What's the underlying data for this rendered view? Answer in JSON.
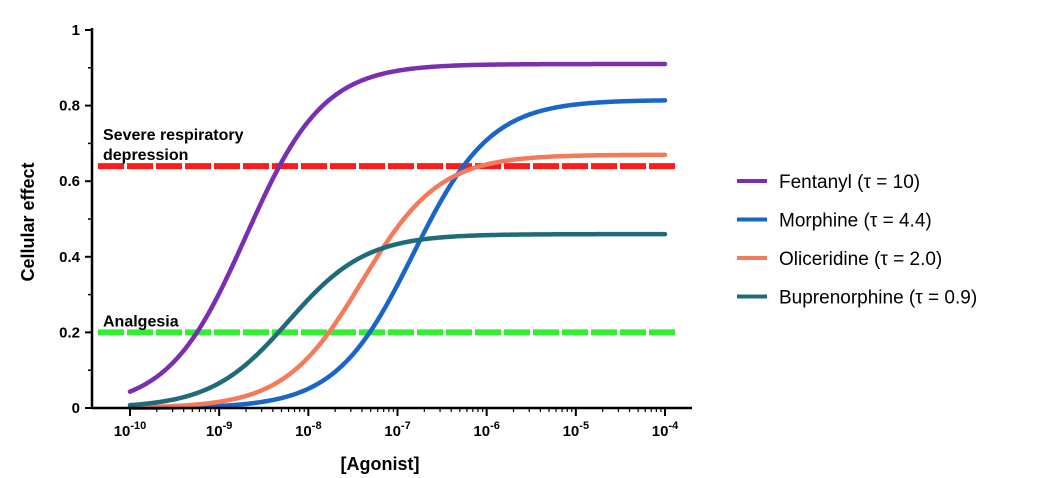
{
  "chart_data": {
    "type": "line",
    "title": "",
    "xlabel": "[Agonist]",
    "ylabel": "Cellular effect",
    "x_scale": "log",
    "xlim": [
      1e-10,
      0.0001
    ],
    "ylim": [
      0,
      1
    ],
    "grid": false,
    "legend_placement": "right",
    "x_ticks": [
      {
        "value": 1e-10,
        "base": "10",
        "exp": "-10"
      },
      {
        "value": 1e-09,
        "base": "10",
        "exp": "-9"
      },
      {
        "value": 1e-08,
        "base": "10",
        "exp": "-8"
      },
      {
        "value": 1e-07,
        "base": "10",
        "exp": "-7"
      },
      {
        "value": 1e-06,
        "base": "10",
        "exp": "-6"
      },
      {
        "value": 1e-05,
        "base": "10",
        "exp": "-5"
      },
      {
        "value": 0.0001,
        "base": "10",
        "exp": "-4"
      }
    ],
    "y_ticks": [
      {
        "value": 0,
        "label": "0"
      },
      {
        "value": 0.2,
        "label": "0.2"
      },
      {
        "value": 0.4,
        "label": "0.4"
      },
      {
        "value": 0.6,
        "label": "0.6"
      },
      {
        "value": 0.8,
        "label": "0.8"
      },
      {
        "value": 1,
        "label": "1"
      }
    ],
    "thresholds": [
      {
        "id": "severe",
        "lines": [
          "Severe respiratory",
          "depression"
        ],
        "y": 0.64,
        "color": "#ff1a1a"
      },
      {
        "id": "analgesia",
        "lines": [
          "Analgesia"
        ],
        "y": 0.2,
        "color": "#33ee33"
      }
    ],
    "series": [
      {
        "name": "Fentanyl (τ = 10)",
        "color": "#7a2fb0",
        "emax": 0.91,
        "ec50": 2e-09,
        "hill": 1.0
      },
      {
        "name": "Morphine (τ = 4.4)",
        "color": "#1a66c8",
        "emax": 0.815,
        "ec50": 1.5e-07,
        "hill": 1.0
      },
      {
        "name": "Oliceridine (τ = 2.0)",
        "color": "#f47a5a",
        "emax": 0.67,
        "ec50": 4e-08,
        "hill": 1.0
      },
      {
        "name": "Buprenorphine (τ = 0.9)",
        "color": "#1f6b7a",
        "emax": 0.46,
        "ec50": 6e-09,
        "hill": 1.0
      }
    ],
    "curve_x_range": [
      1e-10,
      0.0001
    ]
  }
}
